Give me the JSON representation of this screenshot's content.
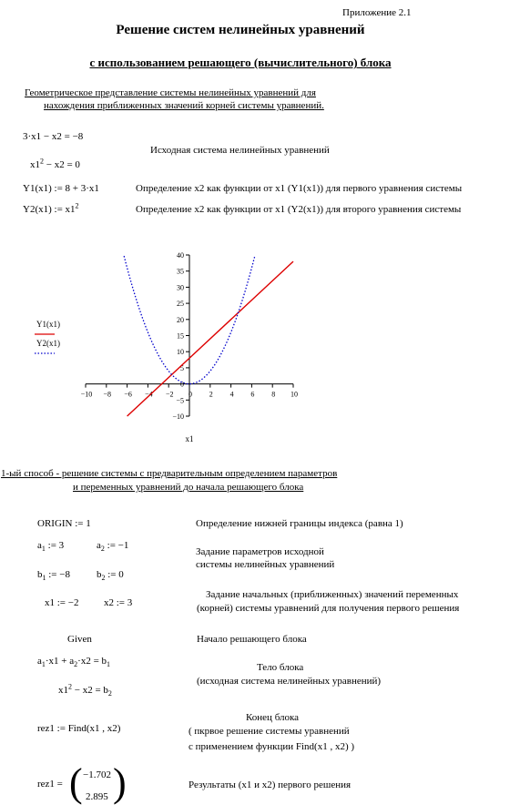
{
  "appendix": "Приложение 2.1",
  "title": "Решение систем нелинейных уравнений",
  "subtitle": "с использованием решающего (вычислительного) блока",
  "section1": {
    "line1": "Геометрическое представление системы  нелинейных уравнений для",
    "line2": "нахождения приближенных значений корней системы уравнений."
  },
  "eq1": "3·x1 − x2 = −8",
  "eq2": {
    "base": "x1",
    "exp": "2",
    "rest": " − x2 = 0"
  },
  "eq_caption": "Исходная система нелинейных уравнений",
  "y1_def": "Y1(x1) := 8 + 3·x1",
  "y1_desc": "Определение x2 как функции от x1 (Y1(x1))  для первого уравнения системы",
  "y2_def": {
    "base": "Y2(x1) := x1",
    "exp": "2"
  },
  "y2_desc": "Определение x2 как функции от x1 (Y2(x1))  для второго уравнения системы",
  "chart_data": {
    "type": "line",
    "xlabel": "x1",
    "xlim": [
      -10,
      10
    ],
    "ylim": [
      -10,
      40
    ],
    "x_ticks": [
      "−10",
      "−8",
      "−6",
      "−4",
      "−2",
      "0",
      "2",
      "4",
      "6",
      "8",
      "10"
    ],
    "y_ticks": [
      "40",
      "35",
      "30",
      "25",
      "20",
      "15",
      "10",
      "5",
      "0",
      "−5",
      "−10"
    ],
    "series": [
      {
        "name": "Y1(x1)",
        "color": "#dd0000",
        "style": "solid",
        "x": [
          -6,
          10
        ],
        "y": [
          -10,
          38
        ]
      },
      {
        "name": "Y2(x1)",
        "color": "#0000cc",
        "style": "dotted",
        "x": [
          -6.3,
          -5,
          -4,
          -3,
          -2,
          -1,
          0,
          1,
          2,
          3,
          4,
          5,
          6.3
        ],
        "y": [
          39.7,
          25,
          16,
          9,
          4,
          1,
          0,
          1,
          4,
          9,
          16,
          25,
          39.7
        ]
      }
    ],
    "legend": [
      "Y1(x1)",
      "Y2(x1)"
    ],
    "grid": false
  },
  "section2": {
    "line1": "1-ый способ - решение системы с предварительным определением  параметров",
    "line2": "и переменных   уравнений  до начала  решающего блока"
  },
  "origin": "ORIGIN := 1",
  "origin_desc": "Определение нижней границы индекса (равна 1)",
  "a1": {
    "base": "a",
    "sub": "1",
    "rest": " := 3"
  },
  "a2": {
    "base": "a",
    "sub": "2",
    "rest": " := −1"
  },
  "b1": {
    "base": "b",
    "sub": "1",
    "rest": " := −8"
  },
  "b2": {
    "base": "b",
    "sub": "2",
    "rest": " := 0"
  },
  "params_desc1": "Задание параметров  исходной",
  "params_desc2": "системы нелинейных уравнений",
  "x1_init": "x1 := −2",
  "x2_init": "x2 := 3",
  "init_desc1": "Задание начальных (приближенных)  значений переменных",
  "init_desc2": "(корней) системы уравнений для получения первого решения",
  "given": "Given",
  "given_desc": "Начало решающего блока",
  "block_eq1": {
    "a1": "a",
    "s1": "1",
    "p1": "·x1 + ",
    "a2": "a",
    "s2": "2",
    "p2": "·x2 = b",
    "s3": "1"
  },
  "block_eq2": {
    "base": "x1",
    "exp": "2",
    "mid": " − x2 = b",
    "sub": "2"
  },
  "body_desc1": "Тело блока",
  "body_desc2": "(исходная система нелинейных уравнений)",
  "find": "rez1 := Find(x1 , x2)",
  "end_desc1": "Конец  блока",
  "end_desc2": "(   пкрвое решение системы уравнений",
  "end_desc3": "с применением функции  Find(x1 , x2) )",
  "result_label": "rez1 =",
  "result_values": [
    "−1.702",
    "2.895"
  ],
  "result_desc": "Результаты  (x1 и x2) первого решения"
}
